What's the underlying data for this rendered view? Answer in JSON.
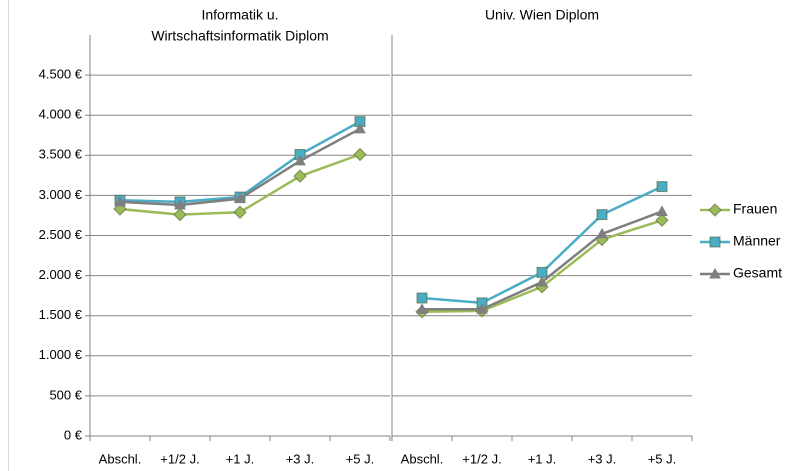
{
  "chart_data": [
    {
      "type": "line",
      "title": [
        "Informatik u.",
        "Wirtschaftsinformatik Diplom"
      ],
      "categories": [
        "Abschl.",
        "+1/2 J.",
        "+1 J.",
        "+3 J.",
        "+5 J."
      ],
      "series": [
        {
          "name": "Frauen",
          "color": "#9bbb59",
          "marker": "diamond",
          "values": [
            2830,
            2760,
            2790,
            3240,
            3510
          ]
        },
        {
          "name": "Männer",
          "color": "#4bacc6",
          "marker": "square",
          "values": [
            2940,
            2920,
            2980,
            3510,
            3920
          ]
        },
        {
          "name": "Gesamt",
          "color": "#7f7f7f",
          "marker": "triangle",
          "values": [
            2920,
            2880,
            2960,
            3430,
            3830
          ]
        }
      ],
      "ylim": [
        0,
        5000
      ],
      "yticks": [
        {
          "value": 0,
          "label": "0 €"
        },
        {
          "value": 500,
          "label": "500 €"
        },
        {
          "value": 1000,
          "label": "1.000 €"
        },
        {
          "value": 1500,
          "label": "1.500 €"
        },
        {
          "value": 2000,
          "label": "2.000 €"
        },
        {
          "value": 2500,
          "label": "2.500 €"
        },
        {
          "value": 3000,
          "label": "3.000 €"
        },
        {
          "value": 3500,
          "label": "3.500 €"
        },
        {
          "value": 4000,
          "label": "4.000 €"
        },
        {
          "value": 4500,
          "label": "4.500 €"
        }
      ],
      "grid": true,
      "legend": "right"
    },
    {
      "type": "line",
      "title": [
        "Univ. Wien Diplom"
      ],
      "categories": [
        "Abschl.",
        "+1/2 J.",
        "+1 J.",
        "+3 J.",
        "+5 J."
      ],
      "series": [
        {
          "color": "#9bbb59",
          "marker": "diamond",
          "values": [
            1550,
            1560,
            1860,
            2450,
            2690
          ]
        },
        {
          "color": "#4bacc6",
          "marker": "square",
          "values": [
            1720,
            1660,
            2040,
            2760,
            3110
          ]
        },
        {
          "color": "#7f7f7f",
          "marker": "triangle",
          "values": [
            1580,
            1580,
            1920,
            2520,
            2800
          ]
        }
      ],
      "ylim": [
        0,
        5000
      ],
      "yticks": [
        0,
        500,
        1000,
        1500,
        2000,
        2500,
        3000,
        3500,
        4000,
        4500
      ],
      "grid": true
    }
  ]
}
